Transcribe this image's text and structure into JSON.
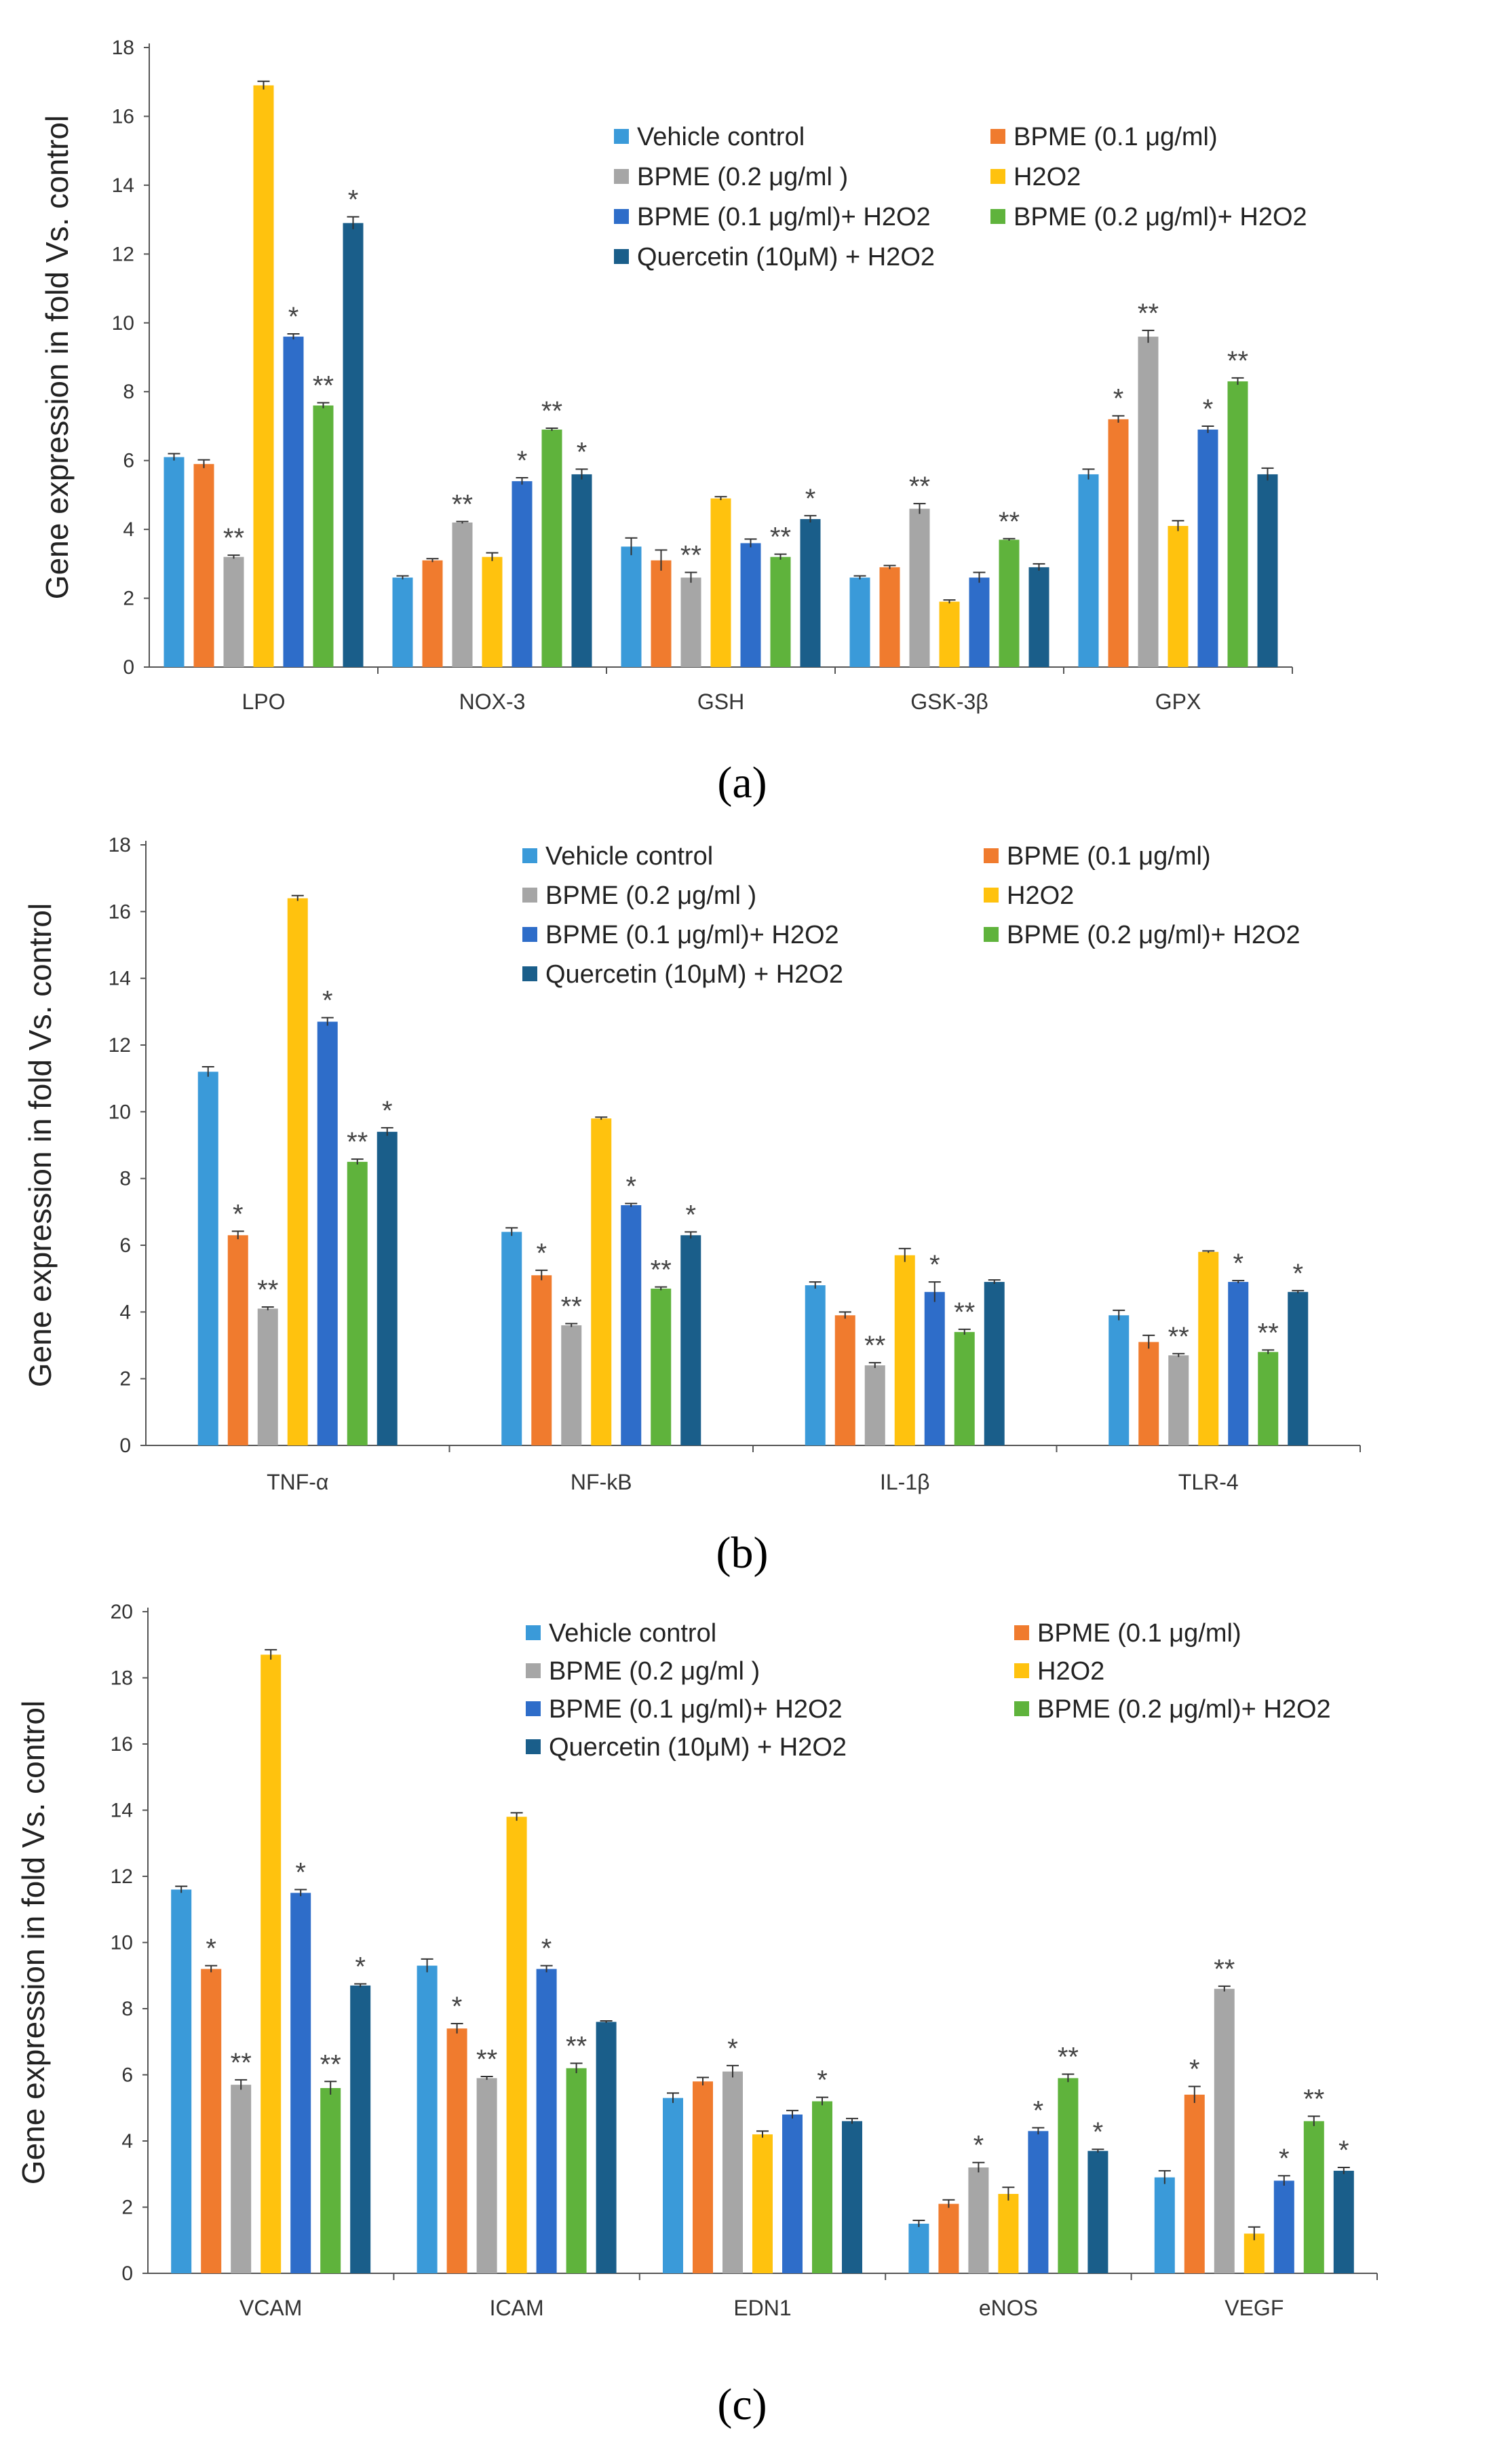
{
  "colors": {
    "vehicle": "#3a9ad9",
    "bpme01": "#f07b2e",
    "bpme02": "#a6a6a6",
    "h2o2": "#ffc20e",
    "bpme01h": "#2e6dc9",
    "bpme02h": "#5fb33c",
    "quercetin": "#1a5e8a"
  },
  "chart_data": [
    {
      "type": "bar",
      "panel_label": "(a)",
      "title": "",
      "xlabel": "",
      "ylabel": "Gene expression in fold Vs. control",
      "ylim": [
        0,
        18
      ],
      "yticks": [
        0,
        2,
        4,
        6,
        8,
        10,
        12,
        14,
        16,
        18
      ],
      "categories": [
        "LPO",
        "NOX-3",
        "GSH",
        "GSK-3β",
        "GPX"
      ],
      "legend": "top-right",
      "series": [
        {
          "name": "Vehicle control",
          "color": "vehicle",
          "values": [
            6.1,
            2.6,
            3.5,
            2.6,
            5.6
          ],
          "errors": [
            0.1,
            0.05,
            0.25,
            0.05,
            0.15
          ],
          "marks": [
            "",
            "",
            "",
            "",
            ""
          ]
        },
        {
          "name": "BPME (0.1 μg/ml)",
          "color": "bpme01",
          "values": [
            5.9,
            3.1,
            3.1,
            2.9,
            7.2
          ],
          "errors": [
            0.12,
            0.05,
            0.3,
            0.05,
            0.1
          ],
          "marks": [
            "",
            "",
            "",
            "",
            "*"
          ]
        },
        {
          "name": "BPME (0.2 μg/ml )",
          "color": "bpme02",
          "values": [
            3.2,
            4.2,
            2.6,
            4.6,
            9.6
          ],
          "errors": [
            0.05,
            0.03,
            0.15,
            0.15,
            0.18
          ],
          "marks": [
            "**",
            "**",
            "**",
            "**",
            "**"
          ]
        },
        {
          "name": "H2O2",
          "color": "h2o2",
          "values": [
            16.9,
            3.2,
            4.9,
            1.9,
            4.1
          ],
          "errors": [
            0.12,
            0.12,
            0.05,
            0.05,
            0.15
          ],
          "marks": [
            "",
            "",
            "",
            "",
            ""
          ]
        },
        {
          "name": "BPME (0.1 μg/ml)+ H2O2",
          "color": "bpme01h",
          "values": [
            9.6,
            5.4,
            3.6,
            2.6,
            6.9
          ],
          "errors": [
            0.08,
            0.1,
            0.12,
            0.15,
            0.1
          ],
          "marks": [
            "*",
            "*",
            "",
            "",
            "*"
          ]
        },
        {
          "name": "BPME (0.2 μg/ml)+ H2O2",
          "color": "bpme02h",
          "values": [
            7.6,
            6.9,
            3.2,
            3.7,
            8.3
          ],
          "errors": [
            0.08,
            0.04,
            0.08,
            0.03,
            0.1
          ],
          "marks": [
            "**",
            "**",
            "**",
            "**",
            "**"
          ]
        },
        {
          "name": "Quercetin (10μM) + H2O2",
          "color": "quercetin",
          "values": [
            12.9,
            5.6,
            4.3,
            2.9,
            5.6
          ],
          "errors": [
            0.18,
            0.15,
            0.1,
            0.1,
            0.18
          ],
          "marks": [
            "*",
            "*",
            "*",
            "",
            ""
          ]
        }
      ]
    },
    {
      "type": "bar",
      "panel_label": "(b)",
      "title": "",
      "xlabel": "",
      "ylabel": "Gene expression in fold Vs. control",
      "ylim": [
        0,
        18
      ],
      "yticks": [
        0,
        2,
        4,
        6,
        8,
        10,
        12,
        14,
        16,
        18
      ],
      "categories": [
        "TNF-α",
        "NF-kB",
        "IL-1β",
        "TLR-4"
      ],
      "legend": "top-right",
      "series": [
        {
          "name": "Vehicle control",
          "color": "vehicle",
          "values": [
            11.2,
            6.4,
            4.8,
            3.9
          ],
          "errors": [
            0.15,
            0.12,
            0.1,
            0.15
          ],
          "marks": [
            "",
            "",
            "",
            ""
          ]
        },
        {
          "name": "BPME (0.1 μg/ml)",
          "color": "bpme01",
          "values": [
            6.3,
            5.1,
            3.9,
            3.1
          ],
          "errors": [
            0.12,
            0.15,
            0.1,
            0.2
          ],
          "marks": [
            "*",
            "*",
            "",
            ""
          ]
        },
        {
          "name": "BPME (0.2 μg/ml )",
          "color": "bpme02",
          "values": [
            4.1,
            3.6,
            2.4,
            2.7
          ],
          "errors": [
            0.05,
            0.05,
            0.08,
            0.05
          ],
          "marks": [
            "**",
            "**",
            "**",
            "**"
          ]
        },
        {
          "name": "H2O2",
          "color": "h2o2",
          "values": [
            16.4,
            9.8,
            5.7,
            5.8
          ],
          "errors": [
            0.08,
            0.04,
            0.2,
            0.03
          ],
          "marks": [
            "",
            "",
            "",
            ""
          ]
        },
        {
          "name": "BPME (0.1 μg/ml)+ H2O2",
          "color": "bpme01h",
          "values": [
            12.7,
            7.2,
            4.6,
            4.9
          ],
          "errors": [
            0.12,
            0.05,
            0.3,
            0.04
          ],
          "marks": [
            "*",
            "*",
            "*",
            "*"
          ]
        },
        {
          "name": "BPME (0.2 μg/ml)+ H2O2",
          "color": "bpme02h",
          "values": [
            8.5,
            4.7,
            3.4,
            2.8
          ],
          "errors": [
            0.08,
            0.05,
            0.08,
            0.06
          ],
          "marks": [
            "**",
            "**",
            "**",
            "**"
          ]
        },
        {
          "name": "Quercetin (10μM) + H2O2",
          "color": "quercetin",
          "values": [
            9.4,
            6.3,
            4.9,
            4.6
          ],
          "errors": [
            0.12,
            0.1,
            0.06,
            0.04
          ],
          "marks": [
            "*",
            "*",
            "",
            "*"
          ]
        }
      ]
    },
    {
      "type": "bar",
      "panel_label": "(c)",
      "title": "",
      "xlabel": "",
      "ylabel": "Gene expression in fold Vs. control",
      "ylim": [
        0,
        20
      ],
      "yticks": [
        0,
        2,
        4,
        6,
        8,
        10,
        12,
        14,
        16,
        18,
        20
      ],
      "categories": [
        "VCAM",
        "ICAM",
        "EDN1",
        "eNOS",
        "VEGF"
      ],
      "legend": "top-right",
      "series": [
        {
          "name": "Vehicle control",
          "color": "vehicle",
          "values": [
            11.6,
            9.3,
            5.3,
            1.5,
            2.9
          ],
          "errors": [
            0.1,
            0.2,
            0.15,
            0.1,
            0.2
          ],
          "marks": [
            "",
            "",
            "",
            "",
            ""
          ]
        },
        {
          "name": "BPME (0.1 μg/ml)",
          "color": "bpme01",
          "values": [
            9.2,
            7.4,
            5.8,
            2.1,
            5.4
          ],
          "errors": [
            0.1,
            0.15,
            0.12,
            0.12,
            0.25
          ],
          "marks": [
            "*",
            "*",
            "",
            "",
            "*"
          ]
        },
        {
          "name": "BPME (0.2 μg/ml )",
          "color": "bpme02",
          "values": [
            5.7,
            5.9,
            6.1,
            3.2,
            8.6
          ],
          "errors": [
            0.15,
            0.05,
            0.18,
            0.15,
            0.08
          ],
          "marks": [
            "**",
            "**",
            "*",
            "*",
            "**"
          ]
        },
        {
          "name": "H2O2",
          "color": "h2o2",
          "values": [
            18.7,
            13.8,
            4.2,
            2.4,
            1.2
          ],
          "errors": [
            0.15,
            0.12,
            0.1,
            0.2,
            0.2
          ],
          "marks": [
            "",
            "",
            "",
            "",
            ""
          ]
        },
        {
          "name": "BPME (0.1 μg/ml)+ H2O2",
          "color": "bpme01h",
          "values": [
            11.5,
            9.2,
            4.8,
            4.3,
            2.8
          ],
          "errors": [
            0.1,
            0.1,
            0.12,
            0.1,
            0.15
          ],
          "marks": [
            "*",
            "*",
            "",
            "*",
            "*"
          ]
        },
        {
          "name": "BPME (0.2 μg/ml)+ H2O2",
          "color": "bpme02h",
          "values": [
            5.6,
            6.2,
            5.2,
            5.9,
            4.6
          ],
          "errors": [
            0.2,
            0.15,
            0.12,
            0.12,
            0.15
          ],
          "marks": [
            "**",
            "**",
            "*",
            "**",
            "**"
          ]
        },
        {
          "name": "Quercetin (10μM) + H2O2",
          "color": "quercetin",
          "values": [
            8.7,
            7.6,
            4.6,
            3.7,
            3.1
          ],
          "errors": [
            0.05,
            0.03,
            0.08,
            0.05,
            0.1
          ],
          "marks": [
            "*",
            "",
            "",
            "*",
            "*"
          ]
        }
      ]
    }
  ]
}
